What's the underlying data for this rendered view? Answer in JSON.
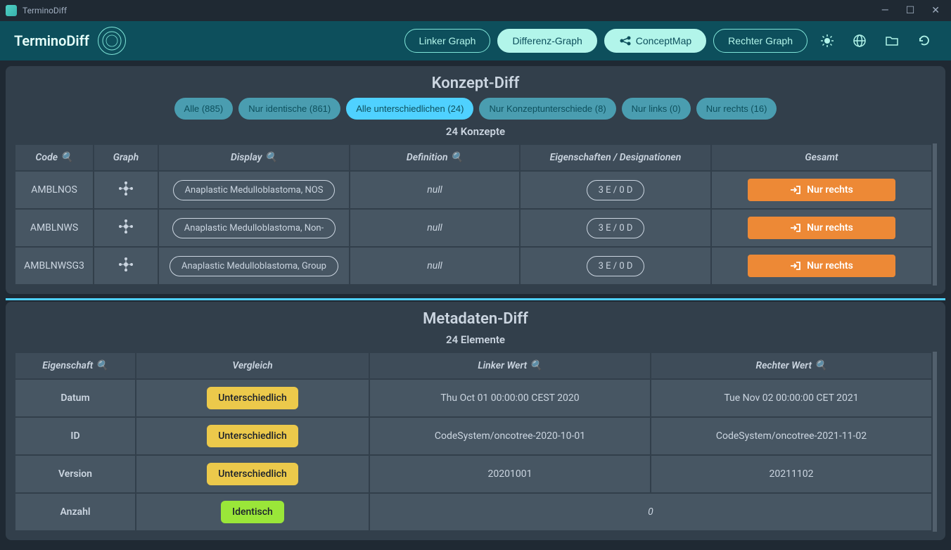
{
  "window": {
    "title": "TerminoDiff"
  },
  "appbar": {
    "brand": "TerminoDiff",
    "nav": {
      "linker": "Linker Graph",
      "differenz": "Differenz-Graph",
      "conceptmap": "ConceptMap",
      "rechter": "Rechter Graph"
    }
  },
  "konzept": {
    "title": "Konzept-Diff",
    "filters": {
      "alle": "Alle (885)",
      "identische": "Nur identische (861)",
      "unterschiedlichen": "Alle unterschiedlichen (24)",
      "konzeptunterschiede": "Nur Konzeptunterschiede (8)",
      "links": "Nur links (0)",
      "rechts": "Nur rechts (16)"
    },
    "count": "24 Konzepte",
    "headers": {
      "code": "Code",
      "graph": "Graph",
      "display": "Display",
      "definition": "Definition",
      "eigenschaften": "Eigenschaften / Designationen",
      "gesamt": "Gesamt"
    },
    "rows": [
      {
        "code": "AMBLNOS",
        "display": "Anaplastic Medulloblastoma, NOS",
        "definition": "null",
        "props": "3 E / 0 D",
        "gesamt": "Nur rechts"
      },
      {
        "code": "AMBLNWS",
        "display": "Anaplastic Medulloblastoma, Non-",
        "definition": "null",
        "props": "3 E / 0 D",
        "gesamt": "Nur rechts"
      },
      {
        "code": "AMBLNWSG3",
        "display": "Anaplastic Medulloblastoma, Group",
        "definition": "null",
        "props": "3 E / 0 D",
        "gesamt": "Nur rechts"
      }
    ]
  },
  "metadaten": {
    "title": "Metadaten-Diff",
    "count": "24 Elemente",
    "headers": {
      "eigenschaft": "Eigenschaft",
      "vergleich": "Vergleich",
      "linker": "Linker Wert",
      "rechter": "Rechter Wert"
    },
    "rows": [
      {
        "eigenschaft": "Datum",
        "vergleich": "Unterschiedlich",
        "vtype": "diff",
        "linker": "Thu Oct 01 00:00:00 CEST 2020",
        "rechter": "Tue Nov 02 00:00:00 CET 2021"
      },
      {
        "eigenschaft": "ID",
        "vergleich": "Unterschiedlich",
        "vtype": "diff",
        "linker": "CodeSystem/oncotree-2020-10-01",
        "rechter": "CodeSystem/oncotree-2021-11-02"
      },
      {
        "eigenschaft": "Version",
        "vergleich": "Unterschiedlich",
        "vtype": "diff",
        "linker": "20201001",
        "rechter": "20211102"
      },
      {
        "eigenschaft": "Anzahl",
        "vergleich": "Identisch",
        "vtype": "same",
        "linker": "",
        "rechter": "",
        "merged": "0"
      }
    ]
  },
  "colors": {
    "titlebar": "#1f2933",
    "appbar": "#0d4f5c",
    "panel": "#323f4b",
    "th": "#3e4c59",
    "td": "#475663",
    "chip": "#4a9db0",
    "chip_active": "#4fd1ff",
    "orange": "#ed8936",
    "yellow": "#ecc94b",
    "green": "#9ae639",
    "teal_text": "#b2f5ea"
  }
}
